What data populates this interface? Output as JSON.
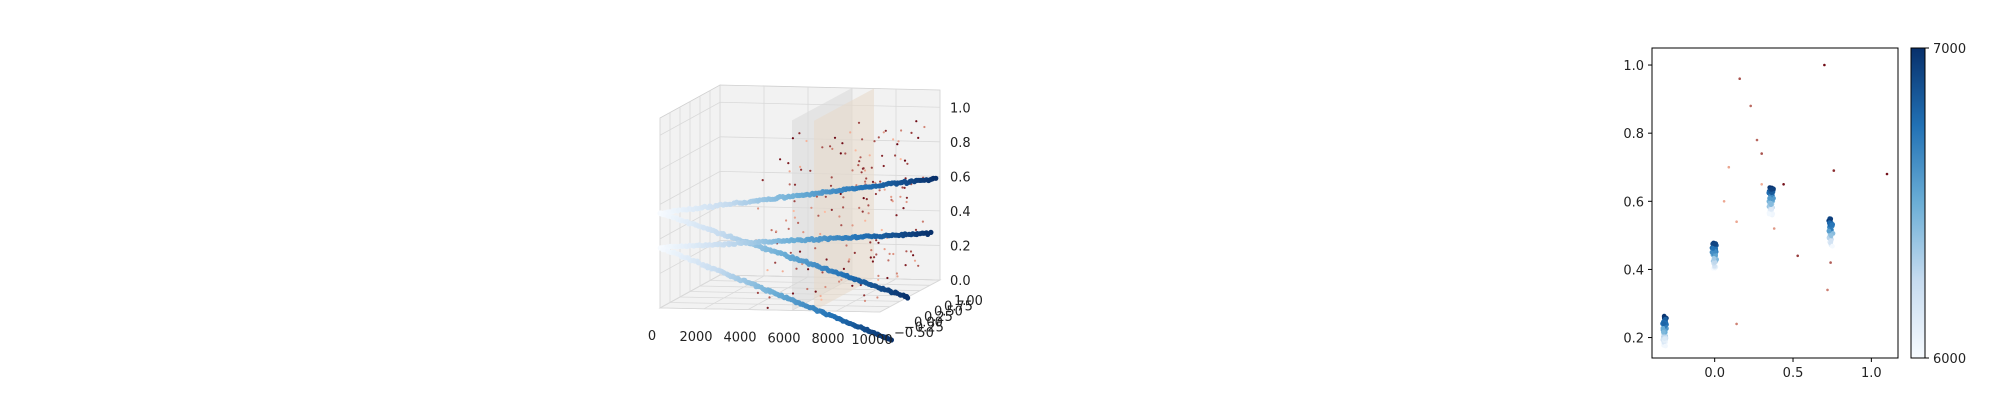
{
  "chart_data": [
    {
      "type": "scatter",
      "title": "",
      "xlabel": "",
      "ylabel": "",
      "zlabel": "",
      "x_ticks": [
        "0",
        "2000",
        "4000",
        "6000",
        "8000",
        "10000"
      ],
      "y_ticks": [
        "−0.50",
        "−0.25",
        "0.00",
        "0.25",
        "0.50",
        "0.75",
        "1.00"
      ],
      "z_ticks": [
        "0.0",
        "0.2",
        "0.4",
        "0.6",
        "0.8",
        "1.0"
      ],
      "xlim": [
        0,
        10000
      ],
      "ylim": [
        -0.5,
        1.0
      ],
      "zlim": [
        0,
        1.1
      ],
      "grid": true,
      "colormap": "Blues",
      "series": [
        {
          "values": [
            {
              "x": 0,
              "y": -0.5,
              "z": 0.55
            },
            {
              "x": 10000,
              "y": 0.9,
              "z": 0.6
            }
          ]
        },
        {
          "values": [
            {
              "x": 0,
              "y": -0.5,
              "z": 0.55
            },
            {
              "x": 10000,
              "y": 0.2,
              "z": 0.0
            }
          ]
        },
        {
          "values": [
            {
              "x": 0,
              "y": -0.5,
              "z": 0.35
            },
            {
              "x": 10000,
              "y": 0.75,
              "z": 0.3
            }
          ]
        },
        {
          "values": [
            {
              "x": 0,
              "y": -0.5,
              "z": 0.35
            },
            {
              "x": 10000,
              "y": -0.2,
              "z": -0.2
            }
          ]
        }
      ],
      "planes_at_x": [
        6000,
        7000
      ],
      "scatter_colormap": "Reds"
    },
    {
      "type": "scatter",
      "title": "",
      "xlabel": "",
      "ylabel": "",
      "x_ticks": [
        "0.0",
        "0.5",
        "1.0"
      ],
      "y_ticks": [
        "0.2",
        "0.4",
        "0.6",
        "0.8",
        "1.0"
      ],
      "xlim": [
        -0.4,
        1.17
      ],
      "ylim": [
        0.14,
        1.05
      ],
      "colormap": "Blues",
      "colorbar": {
        "min": 6000,
        "max": 7000,
        "labels": [
          "6000",
          "7000"
        ]
      },
      "clusters": [
        {
          "x": -0.32,
          "y": 0.22,
          "n": 70
        },
        {
          "x": 0.0,
          "y": 0.44,
          "n": 45
        },
        {
          "x": 0.36,
          "y": 0.6,
          "n": 60
        },
        {
          "x": 0.74,
          "y": 0.51,
          "n": 45
        }
      ],
      "outliers": [
        {
          "x": 0.16,
          "y": 0.96
        },
        {
          "x": 0.23,
          "y": 0.88
        },
        {
          "x": 0.7,
          "y": 1.0
        },
        {
          "x": 0.09,
          "y": 0.7
        },
        {
          "x": 0.27,
          "y": 0.78
        },
        {
          "x": 0.3,
          "y": 0.74
        },
        {
          "x": 0.3,
          "y": 0.65
        },
        {
          "x": 0.76,
          "y": 0.69
        },
        {
          "x": 1.1,
          "y": 0.68
        },
        {
          "x": 0.53,
          "y": 0.44
        },
        {
          "x": 0.74,
          "y": 0.42
        },
        {
          "x": 0.14,
          "y": 0.54
        },
        {
          "x": 0.38,
          "y": 0.52
        },
        {
          "x": 0.14,
          "y": 0.24
        },
        {
          "x": 0.72,
          "y": 0.34
        },
        {
          "x": 0.44,
          "y": 0.65
        },
        {
          "x": 0.06,
          "y": 0.6
        }
      ]
    }
  ]
}
